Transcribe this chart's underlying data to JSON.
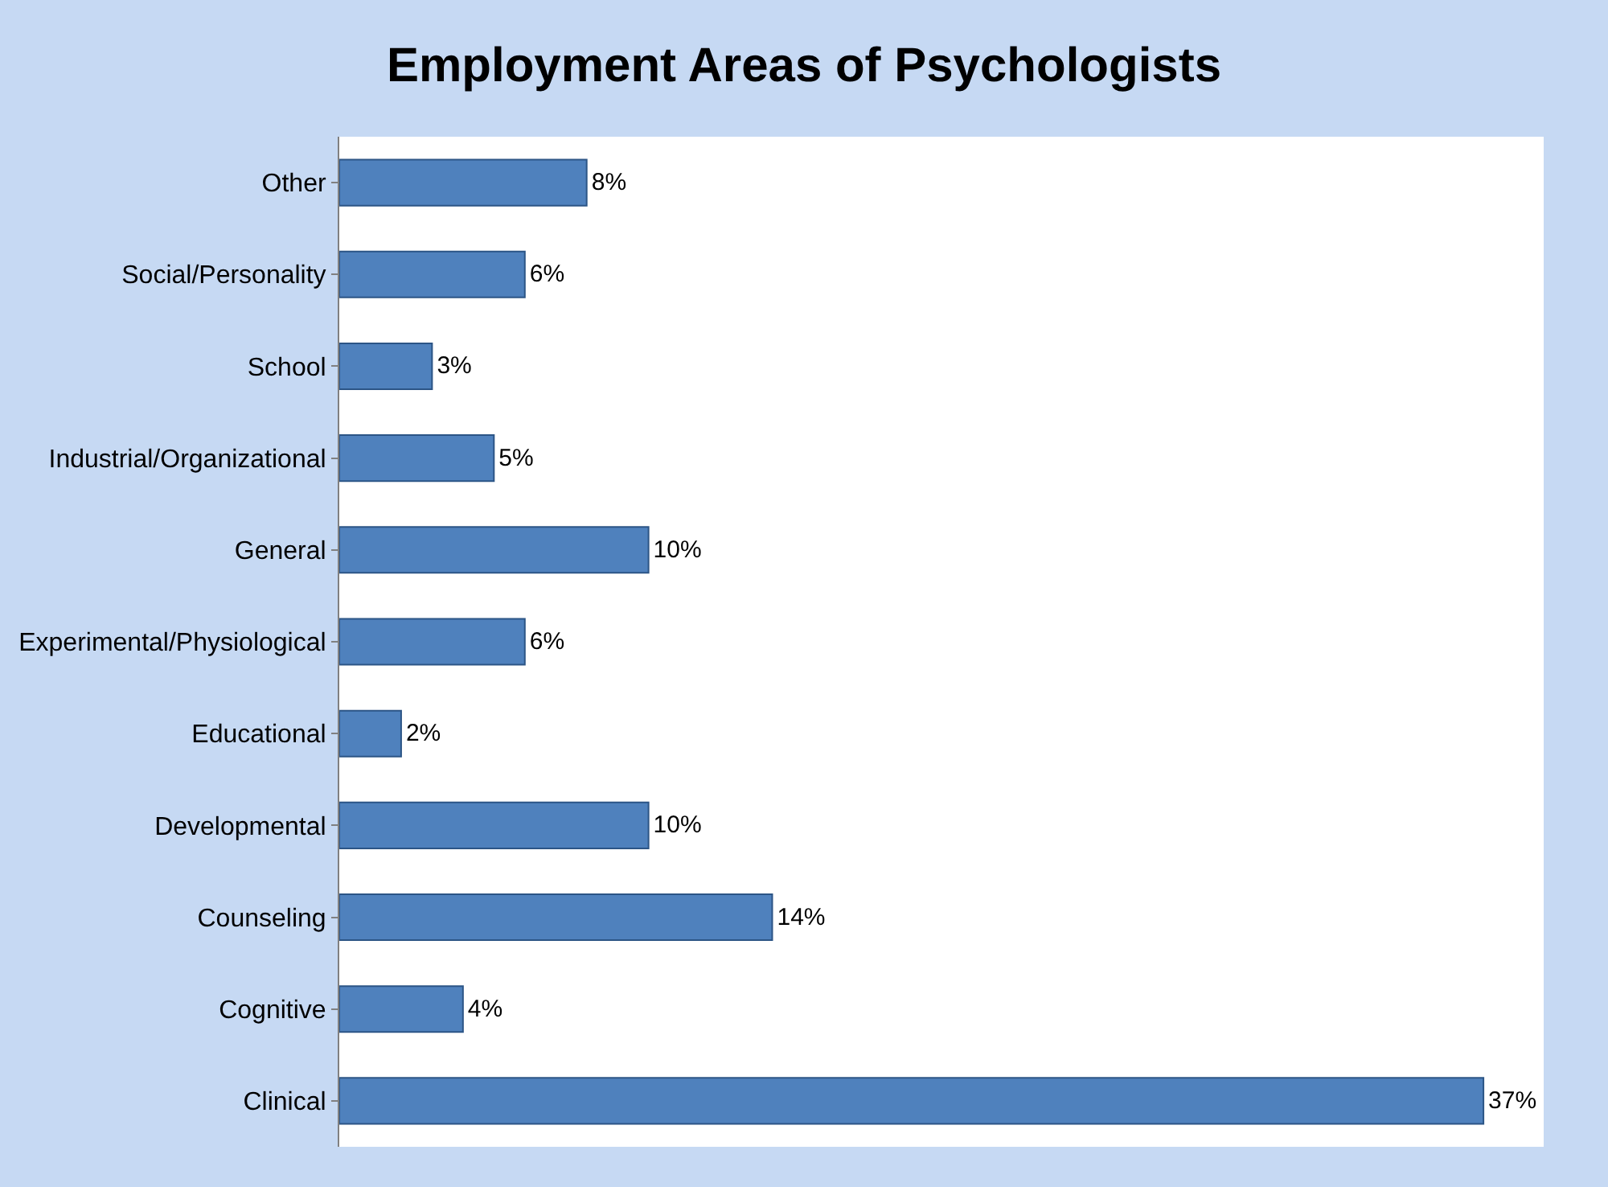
{
  "chart_data": {
    "type": "bar",
    "title": "Employment Areas of Psychologists",
    "orientation": "horizontal",
    "categories": [
      "Other",
      "Social/Personality",
      "School",
      "Industrial/Organizational",
      "General",
      "Experimental/Physiological",
      "Educational",
      "Developmental",
      "Counseling",
      "Cognitive",
      "Clinical"
    ],
    "values": [
      8,
      6,
      3,
      5,
      10,
      6,
      2,
      10,
      14,
      4,
      37
    ],
    "value_labels": [
      "8%",
      "6%",
      "3%",
      "5%",
      "10%",
      "6%",
      "2%",
      "10%",
      "14%",
      "4%",
      "37%"
    ],
    "color": "#4f81bd"
  }
}
